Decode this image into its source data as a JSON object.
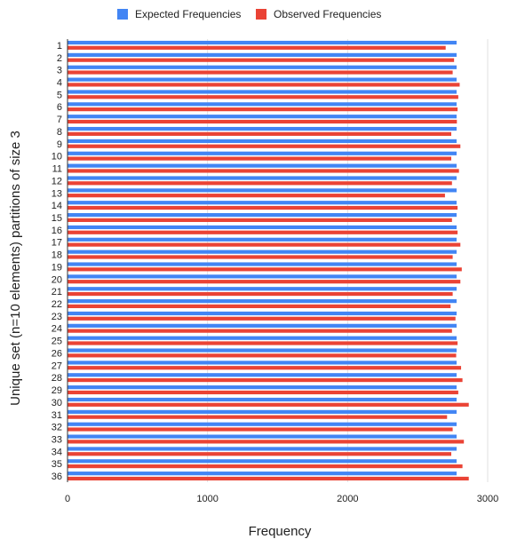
{
  "chart_data": {
    "type": "bar",
    "orientation": "horizontal",
    "xlabel": "Frequency",
    "ylabel": "Unique set (n=10 elements) partitions of size 3",
    "xlim": [
      0,
      3000
    ],
    "xticks": [
      0,
      1000,
      2000,
      3000
    ],
    "grid": true,
    "legend_position": "top",
    "categories": [
      "1",
      "2",
      "3",
      "4",
      "5",
      "6",
      "7",
      "8",
      "9",
      "10",
      "11",
      "12",
      "13",
      "14",
      "15",
      "16",
      "17",
      "18",
      "19",
      "20",
      "21",
      "22",
      "23",
      "24",
      "25",
      "26",
      "27",
      "28",
      "29",
      "30",
      "31",
      "32",
      "33",
      "34",
      "35",
      "36"
    ],
    "series": [
      {
        "name": "Expected Frequencies",
        "color": "#4285f4",
        "values": [
          2778,
          2778,
          2778,
          2778,
          2778,
          2778,
          2778,
          2778,
          2778,
          2778,
          2778,
          2778,
          2778,
          2778,
          2778,
          2778,
          2778,
          2778,
          2778,
          2778,
          2778,
          2778,
          2778,
          2778,
          2778,
          2778,
          2778,
          2778,
          2778,
          2778,
          2778,
          2778,
          2778,
          2778,
          2778,
          2778
        ]
      },
      {
        "name": "Observed Frequencies",
        "color": "#ea4335",
        "values": [
          2700,
          2760,
          2750,
          2800,
          2790,
          2785,
          2780,
          2740,
          2805,
          2740,
          2795,
          2745,
          2695,
          2785,
          2745,
          2785,
          2805,
          2750,
          2815,
          2805,
          2750,
          2735,
          2770,
          2745,
          2785,
          2775,
          2810,
          2820,
          2790,
          2865,
          2710,
          2750,
          2830,
          2740,
          2820,
          2865
        ]
      }
    ]
  }
}
